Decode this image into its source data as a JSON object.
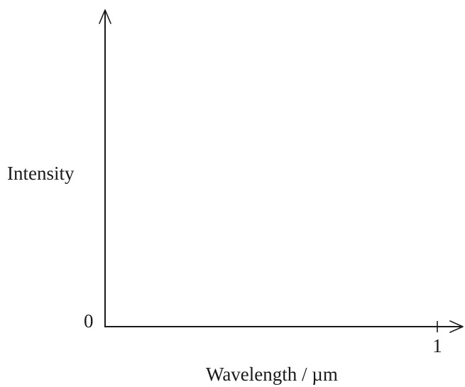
{
  "chart_data": {
    "type": "line",
    "title": "",
    "xlabel": "Wavelength / µm",
    "ylabel": "Intensity",
    "origin_label": "0",
    "x_ticks": [
      {
        "value": 1,
        "label": "1"
      }
    ],
    "xlim": [
      0,
      1
    ],
    "series": [],
    "grid": false,
    "axis_color": "#1a1a1a"
  }
}
